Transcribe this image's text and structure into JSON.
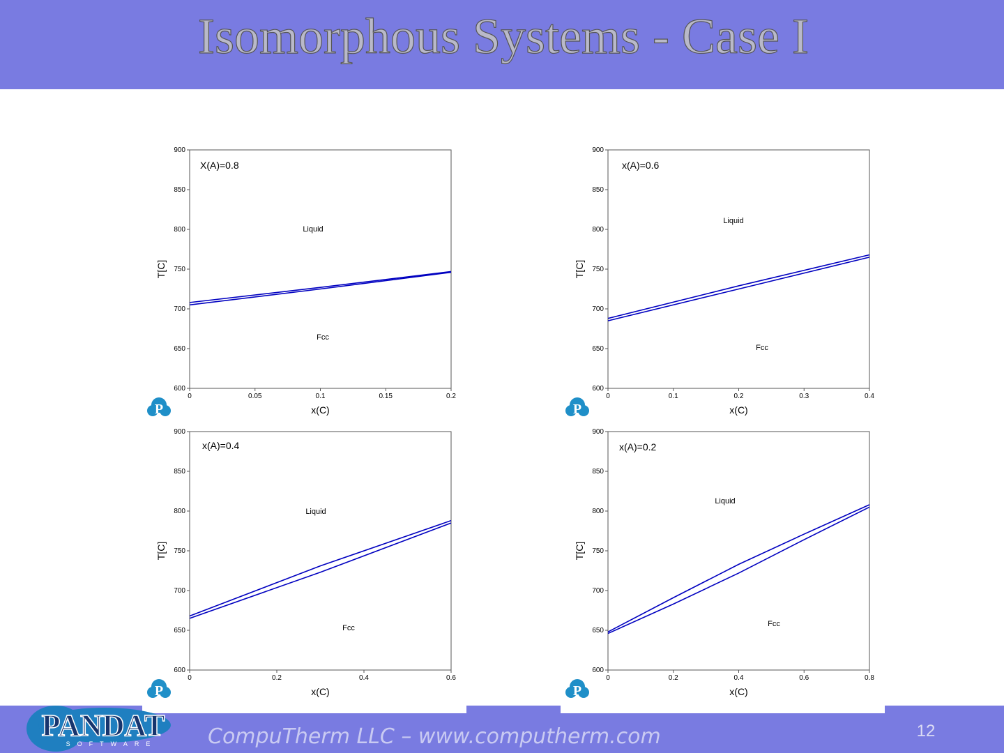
{
  "header": {
    "title": "Isomorphous Systems - Case I"
  },
  "chart_data": [
    {
      "type": "line",
      "annotations": [
        "X(A)=0.8",
        "Liquid",
        "Fcc"
      ],
      "xlabel": "x(C)",
      "ylabel": "T[C]",
      "xlim": [
        0,
        0.2
      ],
      "ylim": [
        600,
        900
      ],
      "xticks": [
        0,
        0.05,
        0.1,
        0.15,
        0.2
      ],
      "yticks": [
        600,
        650,
        700,
        750,
        800,
        850,
        900
      ],
      "x": [
        0,
        0.1,
        0.2
      ],
      "series": [
        {
          "color": "#0000c0",
          "values": [
            708,
            727,
            747
          ]
        },
        {
          "color": "#0000c0",
          "values": [
            705,
            725,
            746
          ]
        }
      ]
    },
    {
      "type": "line",
      "annotations": [
        "x(A)=0.6",
        "Liquid",
        "Fcc"
      ],
      "xlabel": "x(C)",
      "ylabel": "T[C]",
      "xlim": [
        0,
        0.4
      ],
      "ylim": [
        600,
        900
      ],
      "xticks": [
        0,
        0.1,
        0.2,
        0.3,
        0.4
      ],
      "yticks": [
        600,
        650,
        700,
        750,
        800,
        850,
        900
      ],
      "x": [
        0,
        0.2,
        0.4
      ],
      "series": [
        {
          "color": "#0000c0",
          "values": [
            688,
            729,
            768
          ]
        },
        {
          "color": "#0000c0",
          "values": [
            685,
            725,
            765
          ]
        }
      ]
    },
    {
      "type": "line",
      "annotations": [
        "x(A)=0.4",
        "Liquid",
        "Fcc"
      ],
      "xlabel": "x(C)",
      "ylabel": "T[C]",
      "xlim": [
        0,
        0.6
      ],
      "ylim": [
        600,
        900
      ],
      "xticks": [
        0,
        0.2,
        0.4,
        0.6
      ],
      "yticks": [
        600,
        650,
        700,
        750,
        800,
        850,
        900
      ],
      "x": [
        0,
        0.3,
        0.6
      ],
      "series": [
        {
          "color": "#0000c0",
          "values": [
            668,
            731,
            788
          ]
        },
        {
          "color": "#0000c0",
          "values": [
            665,
            723,
            785
          ]
        }
      ]
    },
    {
      "type": "line",
      "annotations": [
        "x(A)=0.2",
        "Liquid",
        "Fcc"
      ],
      "xlabel": "x(C)",
      "ylabel": "T[C]",
      "xlim": [
        0,
        0.8
      ],
      "ylim": [
        600,
        900
      ],
      "xticks": [
        0,
        0.2,
        0.4,
        0.6,
        0.8
      ],
      "yticks": [
        600,
        650,
        700,
        750,
        800,
        850,
        900
      ],
      "x": [
        0,
        0.2,
        0.4,
        0.6,
        0.8
      ],
      "series": [
        {
          "color": "#0000c0",
          "values": [
            648,
            691,
            733,
            771,
            808
          ]
        },
        {
          "color": "#0000c0",
          "values": [
            646,
            683,
            722,
            764,
            805
          ]
        }
      ]
    }
  ],
  "icon_letter": "P",
  "footer": {
    "logo": "PANDAT",
    "logo_sub": "SOFTWARE",
    "text": "CompuTherm LLC – www.computherm.com",
    "page": "12"
  }
}
